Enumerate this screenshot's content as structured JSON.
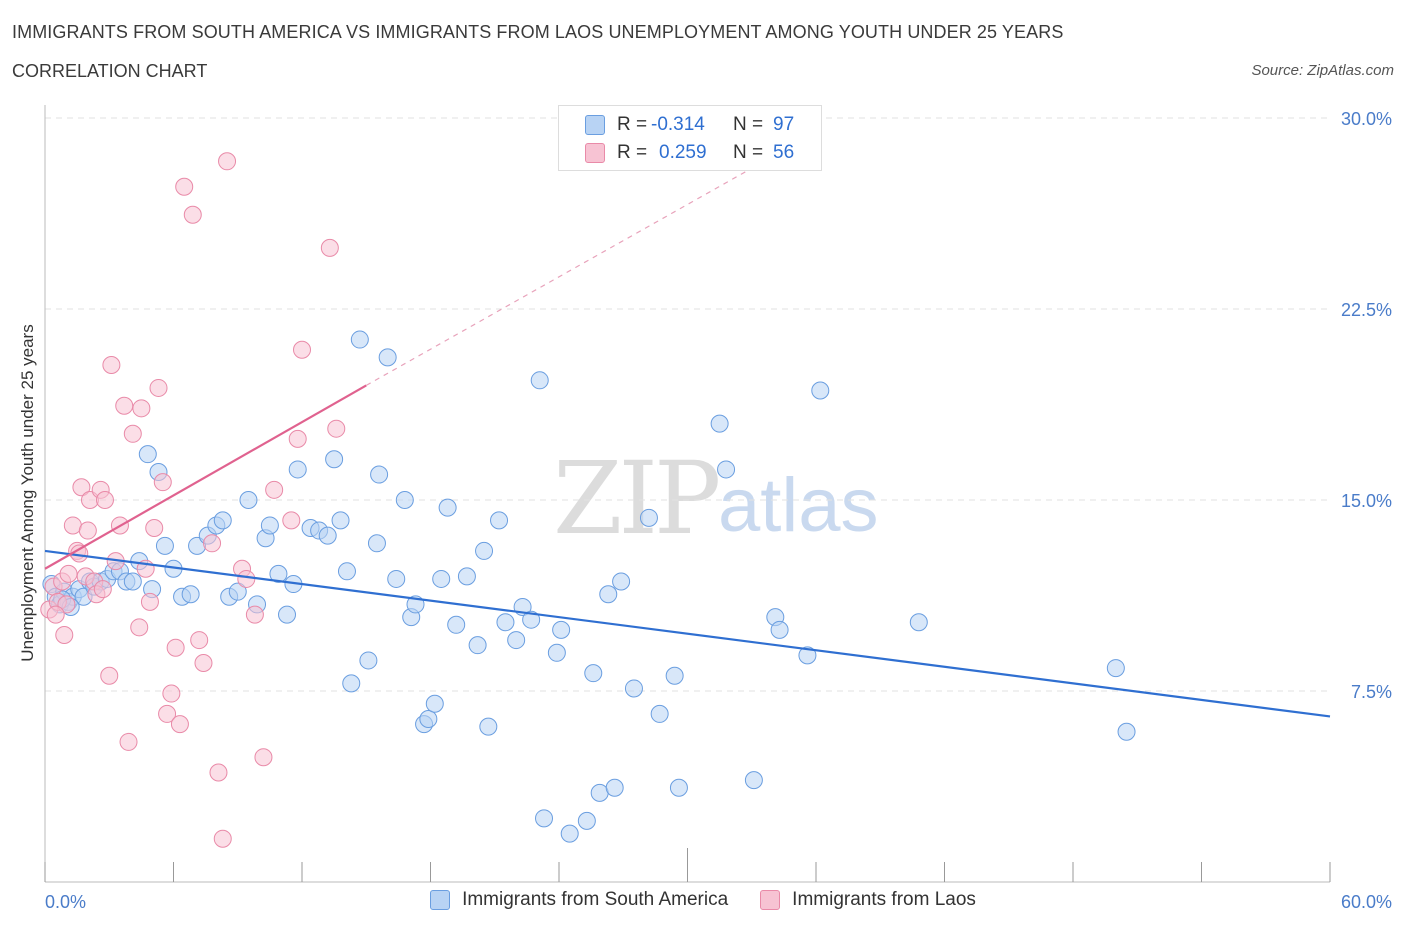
{
  "header": {
    "title": "IMMIGRANTS FROM SOUTH AMERICA VS IMMIGRANTS FROM LAOS UNEMPLOYMENT AMONG YOUTH UNDER 25 YEARS",
    "subtitle": "CORRELATION CHART",
    "source": "Source: ZipAtlas.com"
  },
  "watermark": {
    "zip": "ZIP",
    "atlas": "atlas"
  },
  "legend": {
    "rows": [
      {
        "r_label": "R =",
        "r_value": "-0.314",
        "n_label": "N =",
        "n_value": "97"
      },
      {
        "r_label": "R =",
        "r_value": "0.259",
        "n_label": "N =",
        "n_value": "56"
      }
    ]
  },
  "bottom_legend": {
    "items": [
      {
        "label": "Immigrants from South America"
      },
      {
        "label": "Immigrants from Laos"
      }
    ]
  },
  "colors": {
    "blue_fill": "#b8d3f4",
    "blue_stroke": "#6a9ee0",
    "blue_line": "#2f6fd1",
    "pink_fill": "#f7c3d3",
    "pink_stroke": "#e98aa8",
    "pink_line": "#e0628f",
    "grid": "#e2e2e2",
    "tick_text": "#4a7cc9"
  },
  "chart_data": {
    "type": "scatter",
    "title": "IMMIGRANTS FROM SOUTH AMERICA VS IMMIGRANTS FROM LAOS UNEMPLOYMENT AMONG YOUTH UNDER 25 YEARS",
    "subtitle": "CORRELATION CHART",
    "xlabel": "",
    "ylabel": "Unemployment Among Youth under 25 years",
    "xlim": [
      0,
      60
    ],
    "ylim": [
      0,
      30
    ],
    "x_tick_labels": [
      "0.0%",
      "60.0%"
    ],
    "y_ticks": [
      7.5,
      15,
      22.5,
      30
    ],
    "y_tick_labels": [
      "7.5%",
      "15.0%",
      "22.5%",
      "30.0%"
    ],
    "grid": "horizontal dashed",
    "legend_position": "top-center",
    "series": [
      {
        "name": "Immigrants from South America",
        "color": "#6a9ee0",
        "trend": {
          "x": [
            0,
            60
          ],
          "y": [
            13.0,
            6.5
          ]
        },
        "points": [
          [
            0.3,
            11.7
          ],
          [
            0.5,
            11.2
          ],
          [
            0.7,
            10.9
          ],
          [
            0.9,
            11.4
          ],
          [
            1.1,
            11.0
          ],
          [
            1.3,
            11.2
          ],
          [
            1.6,
            11.5
          ],
          [
            1.8,
            11.2
          ],
          [
            2.1,
            11.8
          ],
          [
            2.3,
            11.6
          ],
          [
            2.6,
            11.8
          ],
          [
            2.9,
            11.9
          ],
          [
            3.2,
            12.2
          ],
          [
            3.5,
            12.2
          ],
          [
            3.8,
            11.8
          ],
          [
            4.1,
            11.8
          ],
          [
            4.4,
            12.6
          ],
          [
            4.8,
            16.8
          ],
          [
            5.0,
            11.5
          ],
          [
            5.3,
            16.1
          ],
          [
            5.6,
            13.2
          ],
          [
            6.0,
            12.3
          ],
          [
            6.4,
            11.2
          ],
          [
            6.8,
            11.3
          ],
          [
            7.1,
            13.2
          ],
          [
            7.6,
            13.6
          ],
          [
            8.0,
            14.0
          ],
          [
            8.3,
            14.2
          ],
          [
            8.6,
            11.2
          ],
          [
            9.0,
            11.4
          ],
          [
            9.5,
            15.0
          ],
          [
            9.9,
            10.9
          ],
          [
            10.3,
            13.5
          ],
          [
            10.5,
            14.0
          ],
          [
            10.9,
            12.1
          ],
          [
            11.3,
            10.5
          ],
          [
            11.6,
            11.7
          ],
          [
            11.8,
            16.2
          ],
          [
            12.4,
            13.9
          ],
          [
            12.8,
            13.8
          ],
          [
            13.2,
            13.6
          ],
          [
            13.5,
            16.6
          ],
          [
            13.8,
            14.2
          ],
          [
            14.1,
            12.2
          ],
          [
            14.3,
            7.8
          ],
          [
            14.7,
            21.3
          ],
          [
            15.1,
            8.7
          ],
          [
            15.5,
            13.3
          ],
          [
            15.6,
            16.0
          ],
          [
            16.0,
            20.6
          ],
          [
            16.4,
            11.9
          ],
          [
            16.8,
            15.0
          ],
          [
            17.1,
            10.4
          ],
          [
            17.3,
            10.9
          ],
          [
            17.7,
            6.2
          ],
          [
            17.9,
            6.4
          ],
          [
            18.2,
            7.0
          ],
          [
            18.5,
            11.9
          ],
          [
            18.8,
            14.7
          ],
          [
            19.2,
            10.1
          ],
          [
            19.7,
            12.0
          ],
          [
            20.2,
            9.3
          ],
          [
            20.5,
            13.0
          ],
          [
            20.7,
            6.1
          ],
          [
            21.2,
            14.2
          ],
          [
            21.5,
            10.2
          ],
          [
            22.0,
            9.5
          ],
          [
            22.3,
            10.8
          ],
          [
            22.7,
            10.3
          ],
          [
            23.1,
            19.7
          ],
          [
            23.3,
            2.5
          ],
          [
            23.9,
            9.0
          ],
          [
            24.1,
            9.9
          ],
          [
            24.5,
            1.9
          ],
          [
            25.3,
            2.4
          ],
          [
            25.6,
            8.2
          ],
          [
            25.9,
            3.5
          ],
          [
            26.3,
            11.3
          ],
          [
            26.6,
            3.7
          ],
          [
            26.9,
            11.8
          ],
          [
            27.5,
            7.6
          ],
          [
            28.2,
            14.3
          ],
          [
            28.7,
            6.6
          ],
          [
            29.4,
            8.1
          ],
          [
            29.6,
            3.7
          ],
          [
            31.5,
            18.0
          ],
          [
            31.8,
            16.2
          ],
          [
            33.1,
            4.0
          ],
          [
            34.1,
            10.4
          ],
          [
            34.3,
            9.9
          ],
          [
            35.6,
            8.9
          ],
          [
            36.2,
            19.3
          ],
          [
            40.8,
            10.2
          ],
          [
            50.0,
            8.4
          ],
          [
            50.5,
            5.9
          ],
          [
            0.8,
            11.1
          ],
          [
            1.2,
            10.8
          ]
        ]
      },
      {
        "name": "Immigrants from Laos",
        "color": "#e98aa8",
        "trend": {
          "x": [
            0,
            15
          ],
          "y": [
            12.3,
            19.5
          ],
          "dashed_extension": {
            "x": [
              15,
              34
            ],
            "y": [
              19.5,
              28.5
            ]
          }
        },
        "points": [
          [
            0.2,
            10.7
          ],
          [
            0.4,
            11.6
          ],
          [
            0.6,
            11.0
          ],
          [
            0.8,
            11.8
          ],
          [
            1.0,
            10.9
          ],
          [
            1.1,
            12.1
          ],
          [
            1.3,
            14.0
          ],
          [
            1.5,
            13.0
          ],
          [
            1.7,
            15.5
          ],
          [
            1.9,
            12.0
          ],
          [
            2.1,
            15.0
          ],
          [
            2.3,
            11.8
          ],
          [
            2.4,
            11.3
          ],
          [
            2.6,
            15.4
          ],
          [
            2.8,
            15.0
          ],
          [
            3.0,
            8.1
          ],
          [
            3.1,
            20.3
          ],
          [
            3.3,
            12.6
          ],
          [
            3.5,
            14.0
          ],
          [
            3.7,
            18.7
          ],
          [
            3.9,
            5.5
          ],
          [
            4.1,
            17.6
          ],
          [
            4.4,
            10.0
          ],
          [
            4.5,
            18.6
          ],
          [
            4.7,
            12.3
          ],
          [
            4.9,
            11.0
          ],
          [
            5.1,
            13.9
          ],
          [
            5.3,
            19.4
          ],
          [
            5.5,
            15.7
          ],
          [
            5.7,
            6.6
          ],
          [
            5.9,
            7.4
          ],
          [
            6.1,
            9.2
          ],
          [
            6.3,
            6.2
          ],
          [
            6.5,
            27.3
          ],
          [
            6.9,
            26.2
          ],
          [
            7.2,
            9.5
          ],
          [
            7.4,
            8.6
          ],
          [
            7.8,
            13.3
          ],
          [
            8.1,
            4.3
          ],
          [
            8.3,
            1.7
          ],
          [
            8.5,
            28.3
          ],
          [
            9.2,
            12.3
          ],
          [
            9.4,
            11.9
          ],
          [
            9.8,
            10.5
          ],
          [
            10.2,
            4.9
          ],
          [
            10.7,
            15.4
          ],
          [
            11.5,
            14.2
          ],
          [
            11.8,
            17.4
          ],
          [
            12.0,
            20.9
          ],
          [
            13.3,
            24.9
          ],
          [
            13.6,
            17.8
          ],
          [
            0.5,
            10.5
          ],
          [
            0.9,
            9.7
          ],
          [
            1.6,
            12.9
          ],
          [
            2.0,
            13.8
          ],
          [
            2.7,
            11.5
          ]
        ]
      }
    ]
  }
}
